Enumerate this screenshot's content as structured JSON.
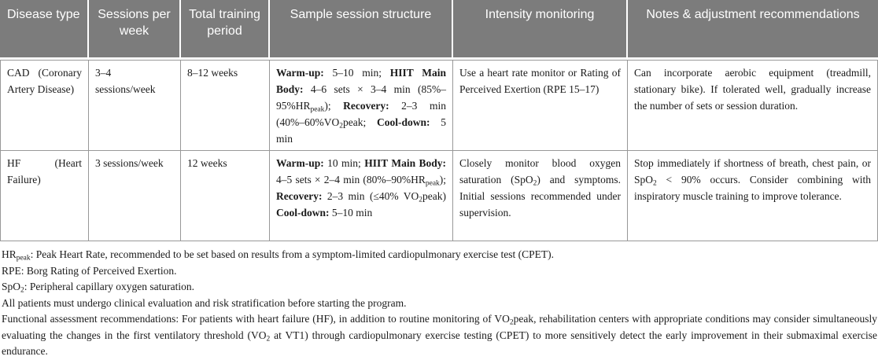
{
  "colors": {
    "header_bg": "#7c7c7c",
    "header_text": "#ffffff",
    "cell_border": "#989898",
    "body_text": "#1a1a1a"
  },
  "table": {
    "headers": [
      "Disease type",
      "Sessions per week",
      "Total training period",
      "Sample session structure",
      "Intensity monitoring",
      "Notes & adjustment recommendations"
    ],
    "column_keys": [
      "disease-type",
      "sessions-per-week",
      "total-training-period",
      "sample-session-structure",
      "intensity-monitoring",
      "notes-recommendations"
    ],
    "rows": [
      {
        "cells": [
          [
            {
              "t": "CAD (Coronary Artery Disease)"
            }
          ],
          [
            {
              "t": "3–4 sessions/week"
            }
          ],
          [
            {
              "t": "8–12 weeks"
            }
          ],
          [
            {
              "t": "Warm-up:",
              "b": true
            },
            {
              "t": " 5–10 min; "
            },
            {
              "t": "HIIT Main Body:",
              "b": true
            },
            {
              "t": " 4–6 sets × 3–4 min (85%–95%HR"
            },
            {
              "t": "peak",
              "sub": true
            },
            {
              "t": "); "
            },
            {
              "t": "Recovery:",
              "b": true
            },
            {
              "t": " 2–3 min (40%–60%VO"
            },
            {
              "t": "2",
              "sub": true
            },
            {
              "t": "peak; "
            },
            {
              "t": "Cool-down:",
              "b": true
            },
            {
              "t": " 5 min"
            }
          ],
          [
            {
              "t": "Use a heart rate monitor or Rating of Perceived Exertion (RPE 15–17)"
            }
          ],
          [
            {
              "t": "Can incorporate aerobic equipment (treadmill, stationary bike). If tolerated well, gradually increase the number of sets or session duration."
            }
          ]
        ]
      },
      {
        "cells": [
          [
            {
              "t": "HF (Heart Failure)"
            }
          ],
          [
            {
              "t": "3 sessions/week"
            }
          ],
          [
            {
              "t": "12 weeks"
            }
          ],
          [
            {
              "t": "Warm-up:",
              "b": true
            },
            {
              "t": " 10 min; "
            },
            {
              "t": "HIIT Main Body:",
              "b": true
            },
            {
              "t": " 4–5 sets × 2–4 min (80%–90%HR"
            },
            {
              "t": "peak",
              "sub": true
            },
            {
              "t": "); "
            },
            {
              "t": "Recovery:",
              "b": true
            },
            {
              "t": " 2–3 min (≤40% VO"
            },
            {
              "t": "2",
              "sub": true
            },
            {
              "t": "peak) "
            },
            {
              "t": "Cool-down:",
              "b": true
            },
            {
              "t": " 5–10 min"
            }
          ],
          [
            {
              "t": "Closely monitor blood oxygen saturation (SpO"
            },
            {
              "t": "2",
              "sub": true
            },
            {
              "t": ") and symptoms. Initial sessions recommended under supervision."
            }
          ],
          [
            {
              "t": "Stop immediately if shortness of breath, chest pain, or SpO"
            },
            {
              "t": "2",
              "sub": true
            },
            {
              "t": " < 90% occurs. Consider combining with inspiratory muscle training to improve tolerance."
            }
          ]
        ]
      }
    ]
  },
  "footnotes": [
    [
      {
        "t": "HR"
      },
      {
        "t": "peak",
        "sub": true
      },
      {
        "t": ": Peak Heart Rate, recommended to be set based on results from a symptom-limited cardiopulmonary exercise test (CPET)."
      }
    ],
    [
      {
        "t": "RPE: Borg Rating of Perceived Exertion."
      }
    ],
    [
      {
        "t": "SpO"
      },
      {
        "t": "2",
        "sub": true
      },
      {
        "t": ": Peripheral capillary oxygen saturation."
      }
    ],
    [
      {
        "t": "All patients must undergo clinical evaluation and risk stratification before starting the program."
      }
    ],
    [
      {
        "t": "Functional assessment recommendations: For patients with heart failure (HF), in addition to routine monitoring of VO"
      },
      {
        "t": "2",
        "sub": true
      },
      {
        "t": "peak, rehabilitation centers with appropriate conditions may consider simultaneously evaluating the changes in the first ventilatory threshold (VO"
      },
      {
        "t": "2",
        "sub": true
      },
      {
        "t": " at VT1) through cardiopulmonary exercise testing (CPET) to more sensitively detect the early improvement in their submaximal exercise endurance."
      }
    ]
  ]
}
